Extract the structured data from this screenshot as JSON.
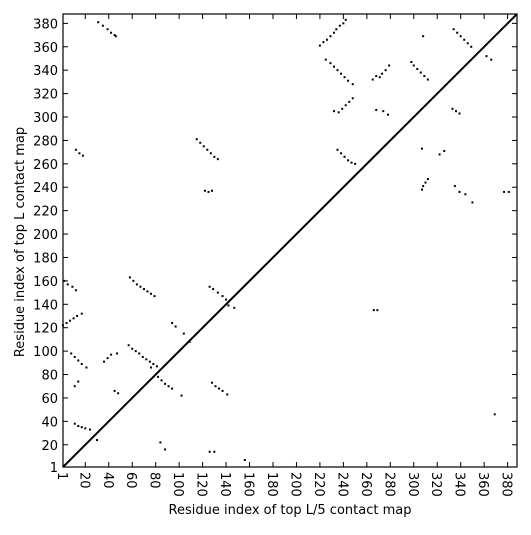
{
  "chart_data": {
    "type": "scatter",
    "xlabel": "Residue index of top L/5 contact map",
    "ylabel": "Residue index of top L contact map",
    "xlim": [
      1,
      388
    ],
    "ylim": [
      1,
      388
    ],
    "xticks": [
      1,
      20,
      40,
      60,
      80,
      100,
      120,
      140,
      160,
      180,
      200,
      220,
      240,
      260,
      280,
      300,
      320,
      340,
      360,
      380
    ],
    "yticks": [
      1,
      20,
      40,
      60,
      80,
      100,
      120,
      140,
      160,
      180,
      200,
      220,
      240,
      260,
      280,
      300,
      320,
      340,
      360,
      380
    ],
    "diagonal": true,
    "series": [
      {
        "color": "#000000",
        "x": [
          31,
          35,
          39,
          42,
          45,
          46,
          220,
          223,
          226,
          229,
          232,
          234,
          237,
          240,
          242,
          225,
          229,
          232,
          235,
          238,
          241,
          244,
          248,
          265,
          268,
          271,
          273,
          276,
          279,
          298,
          300,
          303,
          306,
          309,
          312,
          308,
          334,
          337,
          340,
          343,
          346,
          349,
          362,
          366,
          236,
          239,
          242,
          245,
          248,
          232,
          268,
          274,
          278,
          115,
          118,
          121,
          124,
          127,
          130,
          133,
          235,
          238,
          241,
          244,
          247,
          250,
          12,
          15,
          18,
          122,
          125,
          128,
          307,
          307,
          308,
          310,
          312,
          322,
          326,
          335,
          339,
          344,
          350,
          377,
          381,
          333,
          336,
          339,
          2,
          5,
          9,
          12,
          58,
          61,
          64,
          67,
          70,
          73,
          76,
          79,
          126,
          129,
          133,
          137,
          140,
          147,
          142,
          1,
          4,
          7,
          10,
          13,
          17,
          57,
          60,
          63,
          66,
          69,
          72,
          75,
          78,
          81,
          76,
          8,
          11,
          14,
          17,
          21,
          36,
          39,
          42,
          47,
          94,
          97,
          104,
          109,
          11,
          14,
          45,
          48,
          11,
          14,
          17,
          20,
          24,
          30,
          82,
          85,
          88,
          91,
          94,
          102,
          128,
          131,
          134,
          137,
          141,
          126,
          130,
          156,
          84,
          88,
          266,
          269,
          369
        ],
        "values": [
          381,
          378,
          375,
          372,
          370,
          369,
          361,
          364,
          366,
          369,
          372,
          375,
          378,
          380,
          383,
          349,
          346,
          343,
          340,
          337,
          334,
          331,
          328,
          332,
          335,
          334,
          337,
          340,
          344,
          347,
          344,
          341,
          338,
          335,
          332,
          369,
          375,
          372,
          369,
          366,
          363,
          360,
          352,
          349,
          304,
          307,
          310,
          313,
          316,
          305,
          306,
          305,
          302,
          281,
          278,
          275,
          272,
          269,
          266,
          264,
          272,
          269,
          266,
          263,
          261,
          260,
          272,
          269,
          267,
          237,
          236,
          237,
          273,
          238,
          241,
          244,
          247,
          268,
          271,
          241,
          236,
          234,
          227,
          236,
          236,
          307,
          305,
          303,
          160,
          157,
          155,
          152,
          163,
          160,
          157,
          155,
          153,
          151,
          149,
          147,
          155,
          153,
          150,
          147,
          144,
          137,
          139,
          122,
          124,
          126,
          128,
          130,
          132,
          105,
          102,
          100,
          98,
          95,
          93,
          91,
          89,
          87,
          86,
          98,
          95,
          92,
          89,
          86,
          91,
          94,
          97,
          98,
          124,
          121,
          115,
          108,
          70,
          74,
          66,
          64,
          38,
          36,
          35,
          34,
          33,
          24,
          78,
          75,
          72,
          70,
          68,
          62,
          73,
          70,
          68,
          66,
          63,
          14,
          14,
          7,
          22,
          16,
          135,
          135,
          46
        ]
      }
    ]
  }
}
